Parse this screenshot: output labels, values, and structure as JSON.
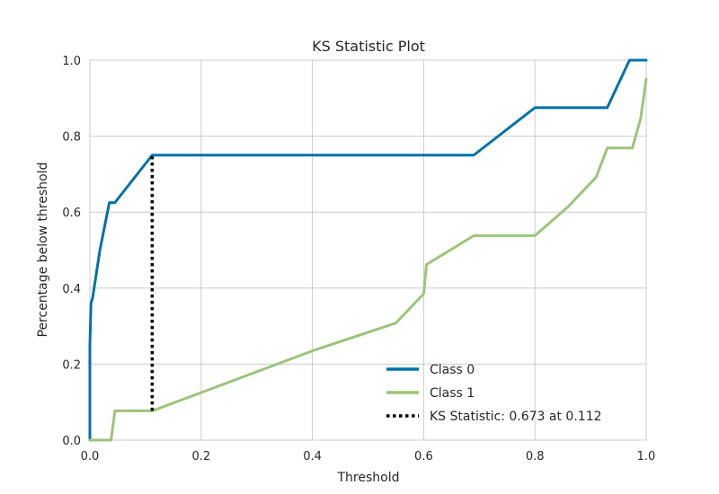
{
  "chart_data": {
    "type": "line",
    "title": "KS Statistic Plot",
    "xlabel": "Threshold",
    "ylabel": "Percentage below threshold",
    "xlim": [
      0.0,
      1.0
    ],
    "ylim": [
      0.0,
      1.0
    ],
    "xticks": [
      "0.0",
      "0.2",
      "0.4",
      "0.6",
      "0.8",
      "1.0"
    ],
    "yticks": [
      "0.0",
      "0.2",
      "0.4",
      "0.6",
      "0.8",
      "1.0"
    ],
    "grid": true,
    "legend_position": "lower-right",
    "series": [
      {
        "name": "Class 0",
        "color": "#0072a8",
        "x": [
          0.0,
          0.0,
          0.002,
          0.005,
          0.018,
          0.035,
          0.045,
          0.112,
          0.69,
          0.8,
          0.93,
          0.97,
          1.0
        ],
        "y": [
          0.0,
          0.25,
          0.36,
          0.375,
          0.5,
          0.625,
          0.625,
          0.75,
          0.75,
          0.875,
          0.875,
          1.0,
          1.0
        ]
      },
      {
        "name": "Class 1",
        "color": "#9bc57a",
        "x": [
          0.0,
          0.038,
          0.045,
          0.112,
          0.2,
          0.4,
          0.55,
          0.6,
          0.605,
          0.69,
          0.8,
          0.86,
          0.91,
          0.93,
          0.975,
          0.99,
          1.0
        ],
        "y": [
          0.0,
          0.0,
          0.077,
          0.077,
          0.125,
          0.235,
          0.308,
          0.385,
          0.462,
          0.538,
          0.538,
          0.615,
          0.692,
          0.769,
          0.769,
          0.846,
          0.95
        ]
      }
    ],
    "ks_statistic": {
      "label": "KS Statistic: 0.673 at 0.112",
      "x": 0.112,
      "y_low": 0.077,
      "y_high": 0.75,
      "color": "#000000"
    }
  }
}
